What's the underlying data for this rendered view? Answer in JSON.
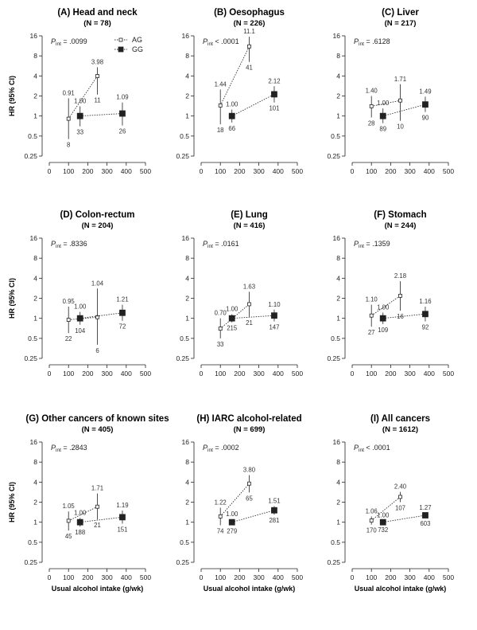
{
  "legend": [
    {
      "key": "AG",
      "label": "AG",
      "marker": "open-square"
    },
    {
      "key": "GG",
      "label": "GG",
      "marker": "filled-square"
    }
  ],
  "axis": {
    "xticks": [
      "0",
      "100",
      "200",
      "300",
      "400",
      "500"
    ],
    "yticks": [
      "0.25",
      "0.5",
      "1",
      "2",
      "4",
      "8",
      "16"
    ],
    "xlabel": "Usual alcohol intake (g/wk)",
    "ylabel": "HR (95% CI)"
  },
  "colors": {
    "ink": "#222222",
    "line": "#333333",
    "marker_fill": "#222222"
  },
  "chart_data": [
    {
      "type": "scatter",
      "title": "(A) Head and  neck",
      "n_label": "(N = 78)",
      "pint_label": "P",
      "pint_sub": "int",
      "pint_value": " = .0099",
      "xlim": [
        0,
        500
      ],
      "ylim": [
        0.25,
        16
      ],
      "yscale": "log2",
      "series": [
        {
          "name": "AG",
          "points": [
            {
              "x": 100,
              "hr": 0.91,
              "lo": 0.45,
              "hi": 1.85,
              "label": "0.91",
              "n": "8"
            },
            {
              "x": 250,
              "hr": 3.98,
              "lo": 2.1,
              "hi": 5.4,
              "label": "3.98",
              "n": "11"
            }
          ]
        },
        {
          "name": "GG",
          "points": [
            {
              "x": 160,
              "hr": 1.0,
              "lo": 0.7,
              "hi": 1.4,
              "label": "1.00",
              "n": "33"
            },
            {
              "x": 380,
              "hr": 1.09,
              "lo": 0.72,
              "hi": 1.6,
              "label": "1.09",
              "n": "26"
            }
          ]
        }
      ]
    },
    {
      "type": "scatter",
      "title": "(B) Oesophagus",
      "n_label": "(N = 226)",
      "pint_label": "P",
      "pint_sub": "int",
      "pint_value": " < .0001",
      "xlim": [
        0,
        500
      ],
      "ylim": [
        0.25,
        16
      ],
      "yscale": "log2",
      "series": [
        {
          "name": "AG",
          "points": [
            {
              "x": 100,
              "hr": 1.44,
              "lo": 0.75,
              "hi": 2.5,
              "label": "1.44",
              "n": "18"
            },
            {
              "x": 250,
              "hr": 11.1,
              "lo": 6.5,
              "hi": 15.5,
              "label": "11.1",
              "n": "41"
            }
          ]
        },
        {
          "name": "GG",
          "points": [
            {
              "x": 160,
              "hr": 1.0,
              "lo": 0.8,
              "hi": 1.25,
              "label": "1.00",
              "n": "66"
            },
            {
              "x": 380,
              "hr": 2.12,
              "lo": 1.6,
              "hi": 2.8,
              "label": "2.12",
              "n": "101"
            }
          ]
        }
      ]
    },
    {
      "type": "scatter",
      "title": "(C) Liver",
      "n_label": "(N = 217)",
      "pint_label": "P",
      "pint_sub": "int",
      "pint_value": " = .6128",
      "xlim": [
        0,
        500
      ],
      "ylim": [
        0.25,
        16
      ],
      "yscale": "log2",
      "series": [
        {
          "name": "AG",
          "points": [
            {
              "x": 100,
              "hr": 1.4,
              "lo": 0.95,
              "hi": 2.0,
              "label": "1.40",
              "n": "28"
            },
            {
              "x": 250,
              "hr": 1.71,
              "lo": 0.85,
              "hi": 3.0,
              "label": "1.71",
              "n": "10"
            }
          ]
        },
        {
          "name": "GG",
          "points": [
            {
              "x": 160,
              "hr": 1.0,
              "lo": 0.78,
              "hi": 1.3,
              "label": "1.00",
              "n": "89"
            },
            {
              "x": 380,
              "hr": 1.49,
              "lo": 1.15,
              "hi": 1.95,
              "label": "1.49",
              "n": "90"
            }
          ]
        }
      ]
    },
    {
      "type": "scatter",
      "title": "(D) Colon-rectum",
      "n_label": "(N = 204)",
      "pint_label": "P",
      "pint_sub": "int",
      "pint_value": " = .8336",
      "xlim": [
        0,
        500
      ],
      "ylim": [
        0.25,
        16
      ],
      "yscale": "log2",
      "series": [
        {
          "name": "AG",
          "points": [
            {
              "x": 100,
              "hr": 0.95,
              "lo": 0.6,
              "hi": 1.5,
              "label": "0.95",
              "n": "22"
            },
            {
              "x": 250,
              "hr": 1.04,
              "lo": 0.4,
              "hi": 2.8,
              "label": "1.04",
              "n": "6"
            }
          ]
        },
        {
          "name": "GG",
          "points": [
            {
              "x": 160,
              "hr": 1.0,
              "lo": 0.8,
              "hi": 1.25,
              "label": "1.00",
              "n": "104"
            },
            {
              "x": 380,
              "hr": 1.21,
              "lo": 0.92,
              "hi": 1.6,
              "label": "1.21",
              "n": "72"
            }
          ]
        }
      ]
    },
    {
      "type": "scatter",
      "title": "(E) Lung",
      "n_label": "(N = 416)",
      "pint_label": "P",
      "pint_sub": "int",
      "pint_value": " = .0161",
      "xlim": [
        0,
        500
      ],
      "ylim": [
        0.25,
        16
      ],
      "yscale": "log2",
      "series": [
        {
          "name": "AG",
          "points": [
            {
              "x": 100,
              "hr": 0.7,
              "lo": 0.5,
              "hi": 1.0,
              "label": "0.70",
              "n": "33"
            },
            {
              "x": 250,
              "hr": 1.63,
              "lo": 1.05,
              "hi": 2.5,
              "label": "1.63",
              "n": "21"
            }
          ]
        },
        {
          "name": "GG",
          "points": [
            {
              "x": 160,
              "hr": 1.0,
              "lo": 0.87,
              "hi": 1.15,
              "label": "1.00",
              "n": "215"
            },
            {
              "x": 380,
              "hr": 1.1,
              "lo": 0.9,
              "hi": 1.35,
              "label": "1.10",
              "n": "147"
            }
          ]
        }
      ]
    },
    {
      "type": "scatter",
      "title": "(F) Stomach",
      "n_label": "(N = 244)",
      "pint_label": "P",
      "pint_sub": "int",
      "pint_value": " = .1359",
      "xlim": [
        0,
        500
      ],
      "ylim": [
        0.25,
        16
      ],
      "yscale": "log2",
      "series": [
        {
          "name": "AG",
          "points": [
            {
              "x": 100,
              "hr": 1.1,
              "lo": 0.75,
              "hi": 1.6,
              "label": "1.10",
              "n": "27"
            },
            {
              "x": 250,
              "hr": 2.18,
              "lo": 1.3,
              "hi": 3.6,
              "label": "2.18",
              "n": "16"
            }
          ]
        },
        {
          "name": "GG",
          "points": [
            {
              "x": 160,
              "hr": 1.0,
              "lo": 0.82,
              "hi": 1.22,
              "label": "1.00",
              "n": "109"
            },
            {
              "x": 380,
              "hr": 1.16,
              "lo": 0.9,
              "hi": 1.5,
              "label": "1.16",
              "n": "92"
            }
          ]
        }
      ]
    },
    {
      "type": "scatter",
      "title": "(G) Other cancers of known sites",
      "n_label": "(N = 405)",
      "pint_label": "P",
      "pint_sub": "int",
      "pint_value": " = .2843",
      "xlim": [
        0,
        500
      ],
      "ylim": [
        0.25,
        16
      ],
      "yscale": "log2",
      "series": [
        {
          "name": "AG",
          "points": [
            {
              "x": 100,
              "hr": 1.05,
              "lo": 0.75,
              "hi": 1.45,
              "label": "1.05",
              "n": "45"
            },
            {
              "x": 250,
              "hr": 1.71,
              "lo": 1.1,
              "hi": 2.7,
              "label": "1.71",
              "n": "21"
            }
          ]
        },
        {
          "name": "GG",
          "points": [
            {
              "x": 160,
              "hr": 1.0,
              "lo": 0.86,
              "hi": 1.16,
              "label": "1.00",
              "n": "188"
            },
            {
              "x": 380,
              "hr": 1.19,
              "lo": 0.95,
              "hi": 1.5,
              "label": "1.19",
              "n": "151"
            }
          ]
        }
      ]
    },
    {
      "type": "scatter",
      "title": "(H) IARC alcohol-related",
      "n_label": "(N = 699)",
      "pint_label": "P",
      "pint_sub": "int",
      "pint_value": " = .0002",
      "xlim": [
        0,
        500
      ],
      "ylim": [
        0.25,
        16
      ],
      "yscale": "log2",
      "series": [
        {
          "name": "AG",
          "points": [
            {
              "x": 100,
              "hr": 1.22,
              "lo": 0.9,
              "hi": 1.65,
              "label": "1.22",
              "n": "74"
            },
            {
              "x": 250,
              "hr": 3.8,
              "lo": 2.8,
              "hi": 5.1,
              "label": "3.80",
              "n": "65"
            }
          ]
        },
        {
          "name": "GG",
          "points": [
            {
              "x": 160,
              "hr": 1.0,
              "lo": 0.9,
              "hi": 1.1,
              "label": "1.00",
              "n": "279"
            },
            {
              "x": 380,
              "hr": 1.51,
              "lo": 1.3,
              "hi": 1.75,
              "label": "1.51",
              "n": "281"
            }
          ]
        }
      ]
    },
    {
      "type": "scatter",
      "title": "(I) All cancers",
      "n_label": "(N = 1612)",
      "pint_label": "P",
      "pint_sub": "int",
      "pint_value": " < .0001",
      "xlim": [
        0,
        500
      ],
      "ylim": [
        0.25,
        16
      ],
      "yscale": "log2",
      "series": [
        {
          "name": "AG",
          "points": [
            {
              "x": 100,
              "hr": 1.06,
              "lo": 0.92,
              "hi": 1.22,
              "label": "1.06",
              "n": "170"
            },
            {
              "x": 250,
              "hr": 2.4,
              "lo": 2.0,
              "hi": 2.85,
              "label": "2.40",
              "n": "107"
            }
          ]
        },
        {
          "name": "GG",
          "points": [
            {
              "x": 160,
              "hr": 1.0,
              "lo": 0.94,
              "hi": 1.06,
              "label": "1.00",
              "n": "732"
            },
            {
              "x": 380,
              "hr": 1.27,
              "lo": 1.17,
              "hi": 1.38,
              "label": "1.27",
              "n": "603"
            }
          ]
        }
      ]
    }
  ]
}
